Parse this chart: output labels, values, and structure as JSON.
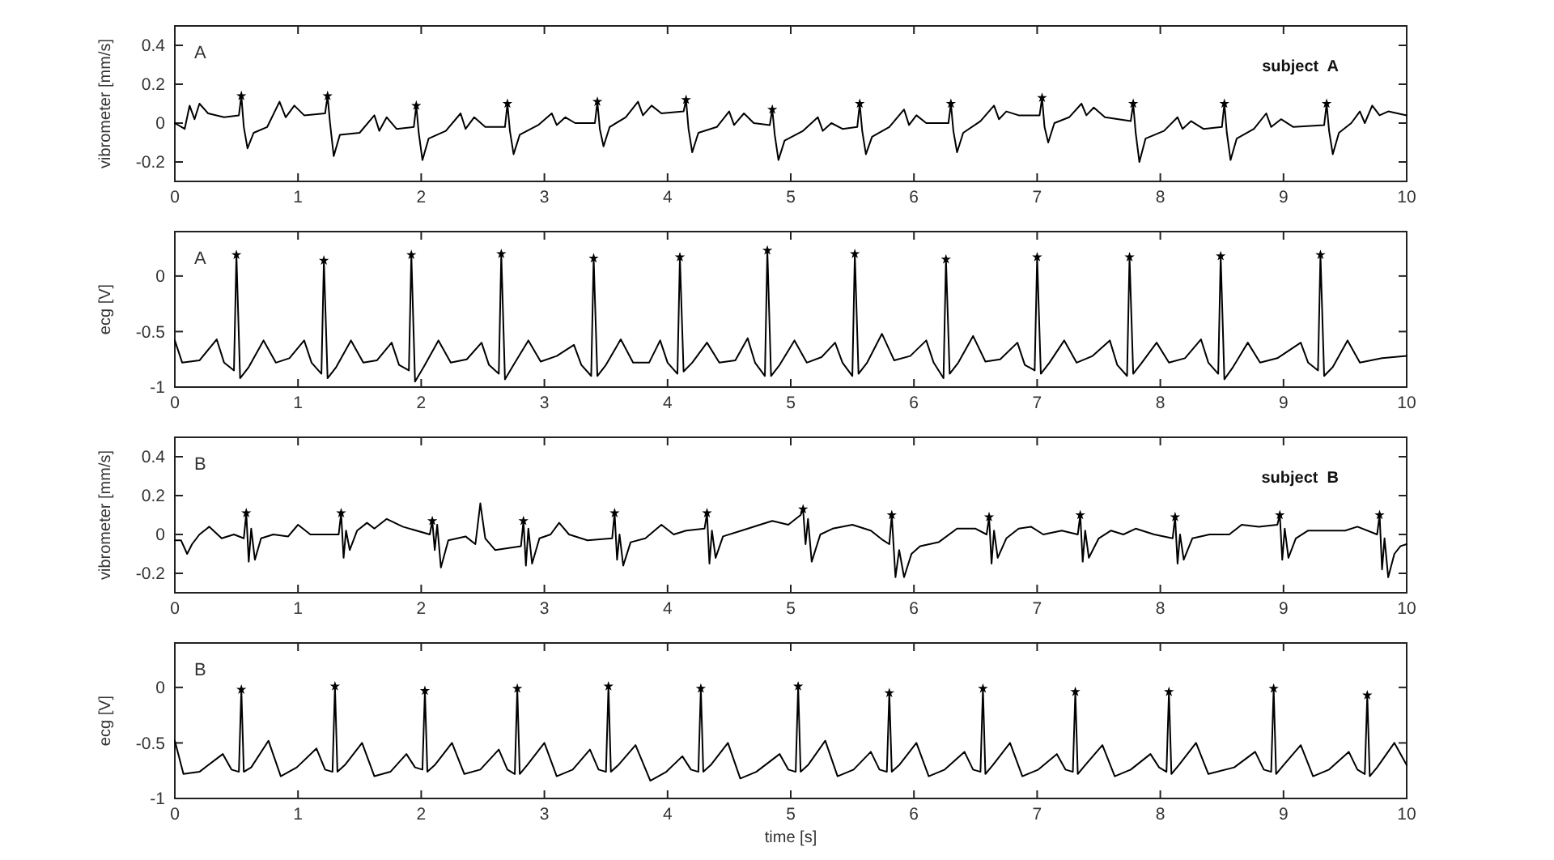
{
  "chart_data": [
    {
      "type": "line",
      "ylabel": "vibrometer [mm/s]",
      "annotations": [
        "A",
        "subject  A"
      ],
      "xlim": [
        0,
        10
      ],
      "xticks": [
        0,
        1,
        2,
        3,
        4,
        5,
        6,
        7,
        8,
        9,
        10
      ],
      "ylim": [
        -0.3,
        0.5
      ],
      "yticks": [
        -0.2,
        0,
        0.2,
        0.4
      ],
      "series": [
        {
          "color": "#000000",
          "x": [
            0,
            0.08,
            0.12,
            0.16,
            0.2,
            0.27,
            0.4,
            0.52,
            0.54,
            0.56,
            0.59,
            0.64,
            0.75,
            0.85,
            0.9,
            0.97,
            1.05,
            1.22,
            1.24,
            1.26,
            1.29,
            1.34,
            1.5,
            1.62,
            1.66,
            1.72,
            1.8,
            1.94,
            1.96,
            1.98,
            2.01,
            2.06,
            2.2,
            2.32,
            2.36,
            2.43,
            2.52,
            2.68,
            2.7,
            2.72,
            2.75,
            2.8,
            2.95,
            3.06,
            3.1,
            3.17,
            3.25,
            3.41,
            3.43,
            3.45,
            3.48,
            3.53,
            3.66,
            3.76,
            3.8,
            3.87,
            3.95,
            4.13,
            4.15,
            4.17,
            4.2,
            4.25,
            4.4,
            4.5,
            4.54,
            4.62,
            4.7,
            4.83,
            4.85,
            4.87,
            4.9,
            4.95,
            5.1,
            5.22,
            5.26,
            5.33,
            5.42,
            5.54,
            5.56,
            5.58,
            5.61,
            5.66,
            5.8,
            5.92,
            5.96,
            6.02,
            6.1,
            6.28,
            6.3,
            6.32,
            6.35,
            6.4,
            6.54,
            6.65,
            6.69,
            6.75,
            6.85,
            7.02,
            7.04,
            7.06,
            7.09,
            7.14,
            7.26,
            7.36,
            7.4,
            7.46,
            7.55,
            7.76,
            7.78,
            7.8,
            7.83,
            7.88,
            8.03,
            8.14,
            8.18,
            8.25,
            8.35,
            8.5,
            8.52,
            8.54,
            8.57,
            8.62,
            8.76,
            8.86,
            8.9,
            8.98,
            9.08,
            9.33,
            9.35,
            9.37,
            9.4,
            9.45,
            9.55,
            9.62,
            9.66,
            9.72,
            9.78,
            9.85,
            10
          ],
          "values": [
            0,
            -0.03,
            0.09,
            0.02,
            0.1,
            0.05,
            0.03,
            0.04,
            0.14,
            -0.02,
            -0.13,
            -0.05,
            -0.02,
            0.11,
            0.03,
            0.09,
            0.04,
            0.05,
            0.14,
            0,
            -0.17,
            -0.06,
            -0.05,
            0.04,
            -0.04,
            0.03,
            -0.03,
            -0.02,
            0.09,
            -0.05,
            -0.19,
            -0.08,
            -0.04,
            0.05,
            -0.03,
            0.03,
            -0.02,
            -0.02,
            0.1,
            -0.04,
            -0.16,
            -0.06,
            -0.01,
            0.05,
            -0.01,
            0.03,
            0,
            0,
            0.11,
            -0.03,
            -0.12,
            -0.02,
            0.03,
            0.11,
            0.04,
            0.09,
            0.05,
            0.06,
            0.12,
            -0.03,
            -0.15,
            -0.05,
            -0.02,
            0.06,
            -0.01,
            0.05,
            0,
            -0.01,
            0.07,
            -0.06,
            -0.19,
            -0.09,
            -0.04,
            0.03,
            -0.04,
            0,
            -0.03,
            -0.02,
            0.1,
            -0.04,
            -0.16,
            -0.07,
            -0.02,
            0.07,
            -0.01,
            0.04,
            0,
            0,
            0.1,
            -0.04,
            -0.15,
            -0.05,
            0.01,
            0.09,
            0.02,
            0.06,
            0.04,
            0.04,
            0.13,
            -0.02,
            -0.1,
            0,
            0.03,
            0.1,
            0.04,
            0.08,
            0.03,
            0.01,
            0.1,
            -0.05,
            -0.2,
            -0.08,
            -0.04,
            0.03,
            -0.03,
            0.01,
            -0.03,
            -0.02,
            0.1,
            -0.05,
            -0.19,
            -0.08,
            -0.03,
            0.05,
            -0.02,
            0.02,
            -0.02,
            -0.01,
            0.1,
            -0.04,
            -0.16,
            -0.05,
            0,
            0.06,
            0,
            0.09,
            0.04,
            0.06,
            0.04
          ]
        },
        {
          "type": "scatter",
          "marker": "star",
          "color": "#000000",
          "x": [
            0.54,
            1.24,
            1.96,
            2.7,
            3.43,
            4.15,
            4.85,
            5.56,
            6.3,
            7.04,
            7.78,
            8.52,
            9.35
          ],
          "values": [
            0.14,
            0.14,
            0.09,
            0.1,
            0.11,
            0.12,
            0.07,
            0.1,
            0.1,
            0.13,
            0.1,
            0.1,
            0.1
          ]
        }
      ]
    },
    {
      "type": "line",
      "ylabel": "ecg [V]",
      "annotations": [
        "A"
      ],
      "xlim": [
        0,
        10
      ],
      "xticks": [
        0,
        1,
        2,
        3,
        4,
        5,
        6,
        7,
        8,
        9,
        10
      ],
      "ylim": [
        -1,
        0.4
      ],
      "yticks": [
        -1,
        -0.5,
        0
      ],
      "series": [
        {
          "color": "#000000",
          "x": [
            0,
            0.06,
            0.2,
            0.34,
            0.4,
            0.48,
            0.5,
            0.53,
            0.6,
            0.72,
            0.82,
            0.93,
            1.05,
            1.11,
            1.19,
            1.21,
            1.24,
            1.31,
            1.43,
            1.53,
            1.64,
            1.76,
            1.82,
            1.9,
            1.92,
            1.95,
            2.02,
            2.14,
            2.24,
            2.37,
            2.49,
            2.55,
            2.63,
            2.65,
            2.68,
            2.75,
            2.87,
            2.97,
            3.1,
            3.24,
            3.3,
            3.38,
            3.4,
            3.43,
            3.5,
            3.62,
            3.72,
            3.85,
            3.94,
            4,
            4.08,
            4.1,
            4.13,
            4.2,
            4.32,
            4.42,
            4.55,
            4.65,
            4.71,
            4.79,
            4.81,
            4.84,
            4.91,
            5.03,
            5.13,
            5.25,
            5.36,
            5.42,
            5.5,
            5.52,
            5.55,
            5.62,
            5.74,
            5.84,
            5.97,
            6.1,
            6.16,
            6.24,
            6.26,
            6.29,
            6.36,
            6.48,
            6.58,
            6.7,
            6.84,
            6.9,
            6.98,
            7,
            7.03,
            7.1,
            7.22,
            7.32,
            7.45,
            7.59,
            7.65,
            7.73,
            7.75,
            7.78,
            7.85,
            7.97,
            8.07,
            8.2,
            8.33,
            8.39,
            8.47,
            8.49,
            8.52,
            8.59,
            8.71,
            8.81,
            8.95,
            9.14,
            9.2,
            9.28,
            9.3,
            9.33,
            9.4,
            9.52,
            9.62,
            9.8,
            10
          ],
          "values": [
            -0.58,
            -0.78,
            -0.76,
            -0.57,
            -0.78,
            -0.85,
            0.19,
            -0.92,
            -0.82,
            -0.58,
            -0.78,
            -0.74,
            -0.58,
            -0.78,
            -0.88,
            0.14,
            -0.92,
            -0.82,
            -0.58,
            -0.78,
            -0.76,
            -0.6,
            -0.8,
            -0.85,
            0.19,
            -0.95,
            -0.82,
            -0.58,
            -0.78,
            -0.75,
            -0.6,
            -0.8,
            -0.88,
            0.2,
            -0.93,
            -0.8,
            -0.58,
            -0.77,
            -0.72,
            -0.62,
            -0.8,
            -0.9,
            0.16,
            -0.9,
            -0.8,
            -0.57,
            -0.78,
            -0.78,
            -0.58,
            -0.78,
            -0.88,
            0.17,
            -0.86,
            -0.78,
            -0.6,
            -0.78,
            -0.76,
            -0.56,
            -0.78,
            -0.9,
            0.23,
            -0.9,
            -0.8,
            -0.58,
            -0.78,
            -0.73,
            -0.6,
            -0.78,
            -0.9,
            0.2,
            -0.88,
            -0.78,
            -0.52,
            -0.76,
            -0.72,
            -0.58,
            -0.78,
            -0.92,
            0.15,
            -0.88,
            -0.78,
            -0.54,
            -0.77,
            -0.75,
            -0.6,
            -0.8,
            -0.85,
            0.17,
            -0.88,
            -0.78,
            -0.58,
            -0.78,
            -0.72,
            -0.58,
            -0.8,
            -0.9,
            0.17,
            -0.88,
            -0.78,
            -0.6,
            -0.78,
            -0.74,
            -0.57,
            -0.78,
            -0.88,
            0.18,
            -0.93,
            -0.82,
            -0.6,
            -0.78,
            -0.74,
            -0.6,
            -0.78,
            -0.85,
            0.19,
            -0.9,
            -0.82,
            -0.58,
            -0.78,
            -0.74,
            -0.72
          ]
        },
        {
          "type": "scatter",
          "marker": "star",
          "color": "#000000",
          "x": [
            0.5,
            1.21,
            1.92,
            2.65,
            3.4,
            4.1,
            4.81,
            5.52,
            6.26,
            7,
            7.75,
            8.49,
            9.3
          ],
          "values": [
            0.19,
            0.14,
            0.19,
            0.2,
            0.16,
            0.17,
            0.23,
            0.2,
            0.15,
            0.17,
            0.17,
            0.18,
            0.19
          ]
        }
      ]
    },
    {
      "type": "line",
      "ylabel": "vibrometer [mm/s]",
      "annotations": [
        "B",
        "subject  B"
      ],
      "xlim": [
        0,
        10
      ],
      "xticks": [
        0,
        1,
        2,
        3,
        4,
        5,
        6,
        7,
        8,
        9,
        10
      ],
      "ylim": [
        -0.3,
        0.5
      ],
      "yticks": [
        -0.2,
        0,
        0.2,
        0.4
      ],
      "series": [
        {
          "color": "#000000",
          "x": [
            0,
            0.05,
            0.1,
            0.14,
            0.2,
            0.28,
            0.38,
            0.48,
            0.56,
            0.58,
            0.6,
            0.62,
            0.65,
            0.7,
            0.8,
            0.92,
            1,
            1.1,
            1.33,
            1.35,
            1.37,
            1.39,
            1.42,
            1.48,
            1.56,
            1.62,
            1.72,
            1.85,
            2.07,
            2.09,
            2.11,
            2.13,
            2.16,
            2.22,
            2.36,
            2.44,
            2.48,
            2.52,
            2.6,
            2.81,
            2.83,
            2.85,
            2.87,
            2.9,
            2.96,
            3.05,
            3.12,
            3.2,
            3.35,
            3.55,
            3.57,
            3.59,
            3.61,
            3.64,
            3.7,
            3.82,
            3.95,
            4.05,
            4.15,
            4.3,
            4.32,
            4.34,
            4.36,
            4.39,
            4.45,
            4.6,
            4.75,
            4.85,
            4.98,
            5.08,
            5.1,
            5.12,
            5.14,
            5.17,
            5.24,
            5.34,
            5.5,
            5.65,
            5.75,
            5.8,
            5.82,
            5.85,
            5.88,
            5.92,
            5.98,
            6.05,
            6.2,
            6.35,
            6.5,
            6.59,
            6.61,
            6.63,
            6.65,
            6.68,
            6.75,
            6.85,
            6.95,
            7.05,
            7.2,
            7.33,
            7.35,
            7.37,
            7.39,
            7.42,
            7.5,
            7.6,
            7.7,
            7.8,
            7.95,
            8.1,
            8.12,
            8.14,
            8.16,
            8.19,
            8.26,
            8.4,
            8.56,
            8.66,
            8.8,
            8.95,
            8.97,
            8.99,
            9.01,
            9.04,
            9.1,
            9.2,
            9.35,
            9.5,
            9.6,
            9.76,
            9.78,
            9.8,
            9.82,
            9.85,
            9.9,
            9.95,
            10
          ],
          "values": [
            -0.03,
            -0.03,
            -0.1,
            -0.05,
            0,
            0.04,
            -0.02,
            0,
            -0.02,
            0.11,
            -0.14,
            0.03,
            -0.13,
            -0.02,
            0,
            -0.01,
            0.05,
            0,
            0,
            0.11,
            -0.12,
            0.02,
            -0.08,
            0.02,
            0.06,
            0.03,
            0.08,
            0.04,
            0,
            0.07,
            -0.08,
            0.05,
            -0.17,
            -0.03,
            -0.01,
            -0.05,
            0.16,
            -0.02,
            -0.08,
            -0.06,
            0.07,
            -0.16,
            0.03,
            -0.15,
            -0.02,
            0,
            0.06,
            0,
            -0.03,
            -0.02,
            0.11,
            -0.13,
            0,
            -0.16,
            -0.04,
            -0.02,
            0.05,
            0,
            0.02,
            0.03,
            0.11,
            -0.15,
            0.02,
            -0.12,
            -0.01,
            0.02,
            0.05,
            0.07,
            0.05,
            0.1,
            0.13,
            -0.05,
            0.08,
            -0.14,
            0,
            0.03,
            0.05,
            0.02,
            -0.03,
            -0.05,
            0.1,
            -0.22,
            -0.08,
            -0.22,
            -0.1,
            -0.06,
            -0.04,
            0.03,
            0.03,
            0,
            0.09,
            -0.15,
            0.02,
            -0.12,
            -0.02,
            0.03,
            0.04,
            0,
            0.02,
            0,
            0.1,
            -0.14,
            0.02,
            -0.12,
            -0.02,
            0.02,
            0,
            0.03,
            0,
            -0.02,
            0.09,
            -0.15,
            0,
            -0.13,
            -0.02,
            0,
            0,
            0.05,
            0.04,
            0.05,
            0.1,
            -0.13,
            0.03,
            -0.12,
            -0.02,
            0.02,
            0.02,
            0.02,
            0.04,
            0,
            0.1,
            -0.18,
            -0.02,
            -0.22,
            -0.1,
            -0.06,
            -0.05
          ]
        },
        {
          "type": "scatter",
          "marker": "star",
          "color": "#000000",
          "x": [
            0.58,
            1.35,
            2.09,
            2.83,
            3.57,
            4.32,
            5.1,
            5.82,
            6.61,
            7.35,
            8.12,
            8.97,
            9.78
          ],
          "values": [
            0.11,
            0.11,
            0.07,
            0.07,
            0.11,
            0.11,
            0.13,
            0.1,
            0.09,
            0.1,
            0.09,
            0.1,
            0.1
          ]
        }
      ]
    },
    {
      "type": "line",
      "ylabel": "ecg [V]",
      "xlabel": "time [s]",
      "annotations": [
        "B"
      ],
      "xlim": [
        0,
        10
      ],
      "xticks": [
        0,
        1,
        2,
        3,
        4,
        5,
        6,
        7,
        8,
        9,
        10
      ],
      "ylim": [
        -1,
        0.4
      ],
      "yticks": [
        -1,
        -0.5,
        0
      ],
      "series": [
        {
          "color": "#000000",
          "x": [
            0,
            0.07,
            0.2,
            0.39,
            0.46,
            0.52,
            0.54,
            0.56,
            0.62,
            0.76,
            0.86,
            0.99,
            1.15,
            1.22,
            1.28,
            1.3,
            1.32,
            1.38,
            1.52,
            1.62,
            1.75,
            1.88,
            1.95,
            2.01,
            2.03,
            2.05,
            2.11,
            2.25,
            2.35,
            2.48,
            2.63,
            2.7,
            2.76,
            2.78,
            2.8,
            2.86,
            3,
            3.1,
            3.23,
            3.37,
            3.44,
            3.5,
            3.52,
            3.54,
            3.6,
            3.74,
            3.86,
            3.99,
            4.12,
            4.19,
            4.25,
            4.27,
            4.29,
            4.35,
            4.49,
            4.59,
            4.72,
            4.91,
            4.98,
            5.04,
            5.06,
            5.08,
            5.14,
            5.28,
            5.38,
            5.51,
            5.65,
            5.72,
            5.78,
            5.8,
            5.82,
            5.88,
            6.02,
            6.12,
            6.25,
            6.41,
            6.48,
            6.54,
            6.56,
            6.58,
            6.64,
            6.78,
            6.88,
            7.01,
            7.16,
            7.23,
            7.29,
            7.31,
            7.33,
            7.39,
            7.53,
            7.63,
            7.76,
            7.92,
            7.99,
            8.05,
            8.07,
            8.09,
            8.15,
            8.29,
            8.39,
            8.6,
            8.77,
            8.84,
            8.9,
            8.92,
            8.94,
            9,
            9.14,
            9.24,
            9.37,
            9.53,
            9.6,
            9.66,
            9.68,
            9.7,
            9.76,
            9.9,
            10
          ],
          "values": [
            -0.48,
            -0.78,
            -0.76,
            -0.6,
            -0.74,
            -0.76,
            -0.02,
            -0.76,
            -0.72,
            -0.48,
            -0.8,
            -0.72,
            -0.55,
            -0.74,
            -0.76,
            0.01,
            -0.76,
            -0.7,
            -0.5,
            -0.8,
            -0.76,
            -0.6,
            -0.72,
            -0.74,
            -0.03,
            -0.76,
            -0.7,
            -0.5,
            -0.78,
            -0.74,
            -0.56,
            -0.74,
            -0.78,
            -0.01,
            -0.78,
            -0.7,
            -0.5,
            -0.8,
            -0.74,
            -0.56,
            -0.74,
            -0.76,
            0.01,
            -0.76,
            -0.7,
            -0.52,
            -0.84,
            -0.76,
            -0.62,
            -0.74,
            -0.76,
            -0.01,
            -0.76,
            -0.7,
            -0.5,
            -0.82,
            -0.76,
            -0.6,
            -0.74,
            -0.76,
            0.01,
            -0.76,
            -0.7,
            -0.48,
            -0.8,
            -0.74,
            -0.58,
            -0.74,
            -0.76,
            -0.05,
            -0.76,
            -0.7,
            -0.5,
            -0.8,
            -0.74,
            -0.58,
            -0.74,
            -0.76,
            -0.01,
            -0.78,
            -0.7,
            -0.5,
            -0.8,
            -0.74,
            -0.6,
            -0.74,
            -0.76,
            -0.04,
            -0.78,
            -0.7,
            -0.52,
            -0.8,
            -0.74,
            -0.6,
            -0.72,
            -0.76,
            -0.04,
            -0.78,
            -0.7,
            -0.5,
            -0.78,
            -0.72,
            -0.58,
            -0.74,
            -0.76,
            -0.01,
            -0.78,
            -0.7,
            -0.52,
            -0.8,
            -0.74,
            -0.58,
            -0.74,
            -0.78,
            -0.07,
            -0.8,
            -0.72,
            -0.5,
            -0.7
          ]
        },
        {
          "type": "scatter",
          "marker": "star",
          "color": "#000000",
          "x": [
            0.54,
            1.3,
            2.03,
            2.78,
            3.52,
            4.27,
            5.06,
            5.8,
            6.56,
            7.31,
            8.07,
            8.92,
            9.68
          ],
          "values": [
            -0.02,
            0.01,
            -0.03,
            -0.01,
            0.01,
            -0.01,
            0.01,
            -0.05,
            -0.01,
            -0.04,
            -0.04,
            -0.01,
            -0.07
          ]
        }
      ]
    }
  ]
}
